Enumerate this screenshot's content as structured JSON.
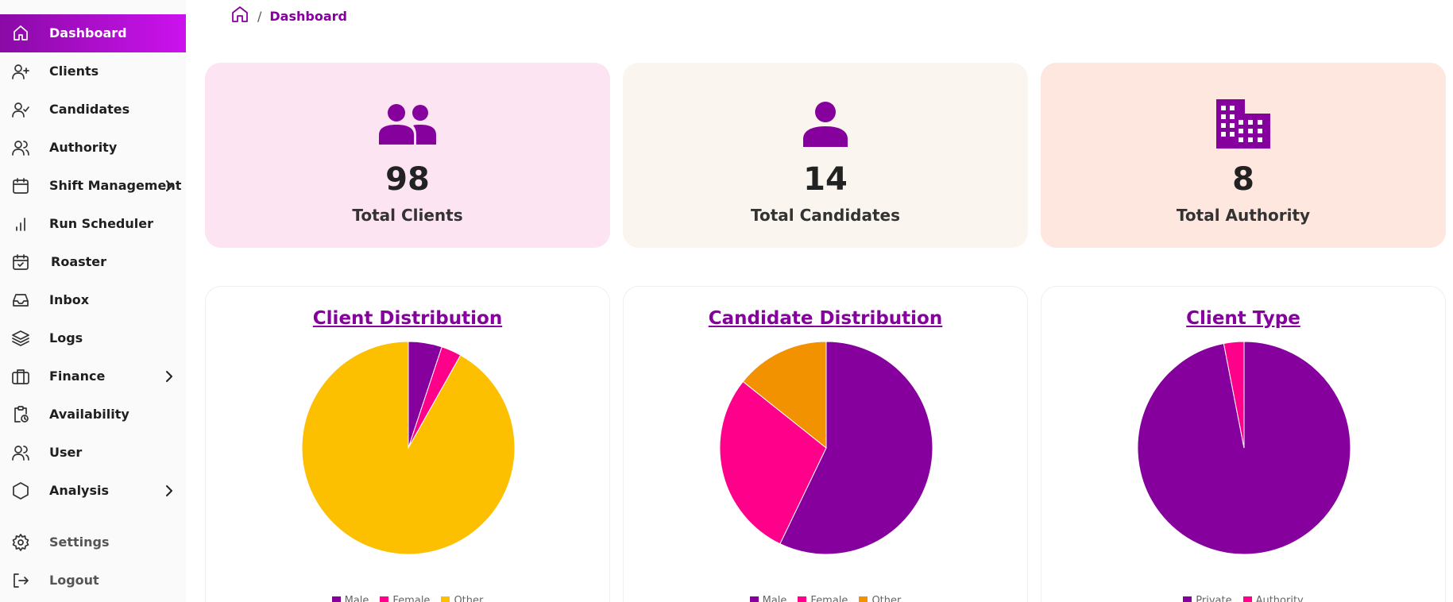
{
  "sidebar": {
    "items": [
      {
        "label": "Dashboard"
      },
      {
        "label": "Clients"
      },
      {
        "label": "Candidates"
      },
      {
        "label": "Authority"
      },
      {
        "label": "Shift Management"
      },
      {
        "label": "Run Scheduler"
      },
      {
        "label": "Roaster"
      },
      {
        "label": "Inbox"
      },
      {
        "label": "Logs"
      },
      {
        "label": "Finance"
      },
      {
        "label": "Availability"
      },
      {
        "label": "User"
      },
      {
        "label": "Analysis"
      },
      {
        "label": "Settings"
      },
      {
        "label": "Logout"
      }
    ]
  },
  "breadcrumb": {
    "current": "Dashboard",
    "separator": "/"
  },
  "stats": [
    {
      "value": "98",
      "label": "Total Clients",
      "bg": "#fde4f2",
      "icon": "users-icon"
    },
    {
      "value": "14",
      "label": "Total Candidates",
      "bg": "#faf5ee",
      "icon": "person-icon"
    },
    {
      "value": "8",
      "label": "Total Authority",
      "bg": "#fde7df",
      "icon": "building-icon"
    }
  ],
  "colors": {
    "accent": "#85009c",
    "magenta": "#ff008a",
    "yellow": "#fcc000",
    "orange": "#f39200"
  },
  "chart_data": [
    {
      "type": "pie",
      "title": "Client Distribution",
      "categories": [
        "Male",
        "Female",
        "Other"
      ],
      "values": [
        5,
        3,
        90
      ],
      "colors": [
        "#85009c",
        "#ff008a",
        "#fcc000"
      ],
      "legend": "bottom"
    },
    {
      "type": "pie",
      "title": "Candidate Distribution",
      "categories": [
        "Male",
        "Female",
        "Other"
      ],
      "values": [
        8,
        4,
        2
      ],
      "colors": [
        "#85009c",
        "#ff008a",
        "#f39200"
      ],
      "legend": "bottom"
    },
    {
      "type": "pie",
      "title": "Client Type",
      "categories": [
        "Private",
        "Authority"
      ],
      "values": [
        95,
        3
      ],
      "colors": [
        "#85009c",
        "#ff008a"
      ],
      "legend": "bottom"
    }
  ]
}
